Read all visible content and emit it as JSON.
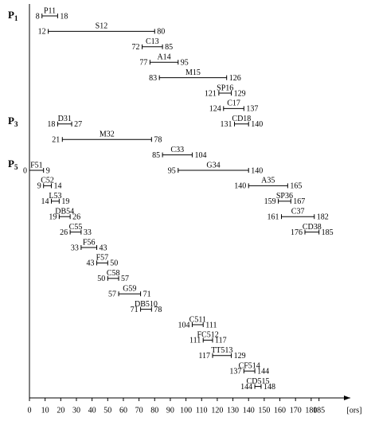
{
  "chart_data": {
    "type": "gantt",
    "x_label": "[ors]",
    "xlim": [
      0,
      205
    ],
    "xticks": [
      0,
      10,
      20,
      30,
      40,
      50,
      60,
      70,
      80,
      90,
      100,
      110,
      120,
      130,
      140,
      150,
      160,
      170,
      180,
      185
    ],
    "groups": [
      {
        "label": "P",
        "sub": "1"
      },
      {
        "label": "P",
        "sub": "3"
      },
      {
        "label": "P",
        "sub": "5"
      }
    ],
    "tasks": [
      {
        "name": "P11",
        "start": 8,
        "end": 18
      },
      {
        "name": "S12",
        "start": 12,
        "end": 80
      },
      {
        "name": "C13",
        "start": 72,
        "end": 85
      },
      {
        "name": "A14",
        "start": 77,
        "end": 95
      },
      {
        "name": "M15",
        "start": 83,
        "end": 126
      },
      {
        "name": "SP16",
        "start": 121,
        "end": 129
      },
      {
        "name": "C17",
        "start": 124,
        "end": 137
      },
      {
        "name": "CD18",
        "start": 131,
        "end": 140
      },
      {
        "name": "D31",
        "start": 18,
        "end": 27
      },
      {
        "name": "M32",
        "start": 21,
        "end": 78
      },
      {
        "name": "C33",
        "start": 85,
        "end": 104
      },
      {
        "name": "G34",
        "start": 95,
        "end": 140
      },
      {
        "name": "A35",
        "start": 140,
        "end": 165
      },
      {
        "name": "SP36",
        "start": 159,
        "end": 167
      },
      {
        "name": "C37",
        "start": 161,
        "end": 182
      },
      {
        "name": "CD38",
        "start": 176,
        "end": 185
      },
      {
        "name": "F51",
        "start": 0,
        "end": 9
      },
      {
        "name": "C52",
        "start": 9,
        "end": 14
      },
      {
        "name": "L53",
        "start": 14,
        "end": 19
      },
      {
        "name": "DB54",
        "start": 19,
        "end": 26
      },
      {
        "name": "C55",
        "start": 26,
        "end": 33
      },
      {
        "name": "F56",
        "start": 33,
        "end": 43
      },
      {
        "name": "F57",
        "start": 43,
        "end": 50
      },
      {
        "name": "C58",
        "start": 50,
        "end": 57
      },
      {
        "name": "G59",
        "start": 57,
        "end": 71
      },
      {
        "name": "DB510",
        "start": 71,
        "end": 78
      },
      {
        "name": "C511",
        "start": 104,
        "end": 111
      },
      {
        "name": "FC512",
        "start": 111,
        "end": 117
      },
      {
        "name": "TT513",
        "start": 117,
        "end": 129
      },
      {
        "name": "CF514",
        "start": 137,
        "end": 144
      },
      {
        "name": "CD515",
        "start": 144,
        "end": 148
      }
    ]
  }
}
